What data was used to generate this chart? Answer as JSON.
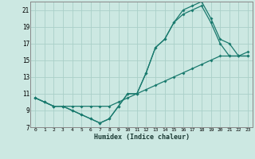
{
  "xlabel": "Humidex (Indice chaleur)",
  "bg_color": "#cce8e2",
  "grid_color": "#aad0c8",
  "line_color": "#1a7a6e",
  "xlim": [
    -0.5,
    23.5
  ],
  "ylim": [
    7,
    22
  ],
  "xticks": [
    0,
    1,
    2,
    3,
    4,
    5,
    6,
    7,
    8,
    9,
    10,
    11,
    12,
    13,
    14,
    15,
    16,
    17,
    18,
    19,
    20,
    21,
    22,
    23
  ],
  "yticks": [
    7,
    9,
    11,
    13,
    15,
    17,
    19,
    21
  ],
  "line1_x": [
    0,
    1,
    2,
    3,
    4,
    5,
    6,
    7,
    8,
    9,
    10,
    11,
    12,
    13,
    14,
    15,
    16,
    17,
    18,
    19,
    20,
    21,
    22,
    23
  ],
  "line1_y": [
    10.5,
    10.0,
    9.5,
    9.5,
    9.0,
    8.5,
    8.0,
    7.5,
    8.0,
    9.5,
    11.0,
    11.0,
    13.5,
    16.5,
    17.5,
    19.5,
    20.5,
    21.0,
    21.5,
    19.5,
    17.0,
    15.5,
    15.5,
    15.5
  ],
  "line2_x": [
    0,
    1,
    2,
    3,
    4,
    5,
    6,
    7,
    8,
    9,
    10,
    11,
    12,
    13,
    14,
    15,
    16,
    17,
    18,
    19,
    20,
    21,
    22,
    23
  ],
  "line2_y": [
    10.5,
    10.0,
    9.5,
    9.5,
    9.0,
    8.5,
    8.0,
    7.5,
    8.0,
    9.5,
    11.0,
    11.0,
    13.5,
    16.5,
    17.5,
    19.5,
    21.0,
    21.5,
    22.0,
    20.0,
    17.5,
    17.0,
    15.5,
    15.5
  ],
  "line3_x": [
    0,
    1,
    2,
    3,
    4,
    5,
    6,
    7,
    8,
    9,
    10,
    11,
    12,
    13,
    14,
    15,
    16,
    17,
    18,
    19,
    20,
    21,
    22,
    23
  ],
  "line3_y": [
    10.5,
    10.0,
    9.5,
    9.5,
    9.5,
    9.5,
    9.5,
    9.5,
    9.5,
    10.0,
    10.5,
    11.0,
    11.5,
    12.0,
    12.5,
    13.0,
    13.5,
    14.0,
    14.5,
    15.0,
    15.5,
    15.5,
    15.5,
    16.0
  ]
}
